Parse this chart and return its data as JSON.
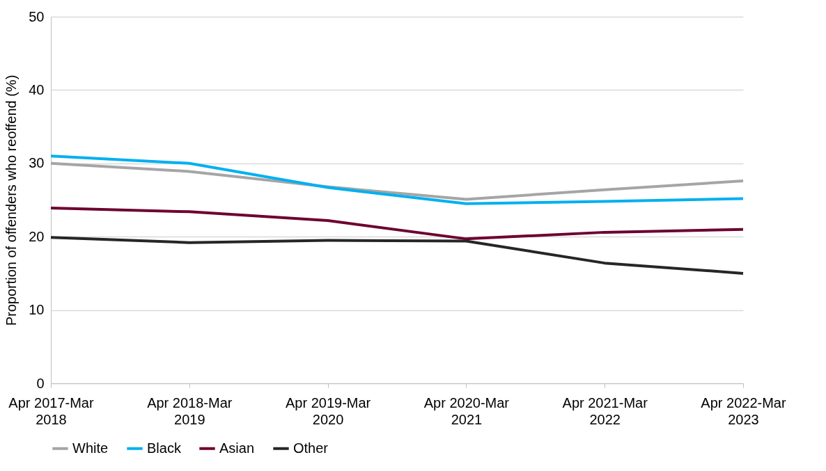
{
  "chart_data": {
    "type": "line",
    "ylabel": "Proportion of offenders who reoffend (%)",
    "categories": [
      "Apr 2017-Mar 2018",
      "Apr 2018-Mar 2019",
      "Apr 2019-Mar 2020",
      "Apr 2020-Mar 2021",
      "Apr 2021-Mar 2022",
      "Apr 2022-Mar 2023"
    ],
    "series": [
      {
        "name": "White",
        "color": "#a5a5a5",
        "values": [
          30.0,
          28.9,
          26.8,
          25.1,
          26.4,
          27.6
        ]
      },
      {
        "name": "Black",
        "color": "#00b0f0",
        "values": [
          31.0,
          30.0,
          26.7,
          24.5,
          24.8,
          25.2
        ]
      },
      {
        "name": "Asian",
        "color": "#6d0031",
        "values": [
          23.9,
          23.4,
          22.2,
          19.7,
          20.6,
          21.0
        ]
      },
      {
        "name": "Other",
        "color": "#262626",
        "values": [
          19.9,
          19.2,
          19.5,
          19.4,
          16.4,
          15.0
        ]
      }
    ],
    "ylim": [
      0,
      50
    ],
    "yticks": [
      0,
      10,
      20,
      30,
      40,
      50
    ],
    "grid": "y",
    "legend": "bottom",
    "marker": "none",
    "line_style": "solid"
  }
}
